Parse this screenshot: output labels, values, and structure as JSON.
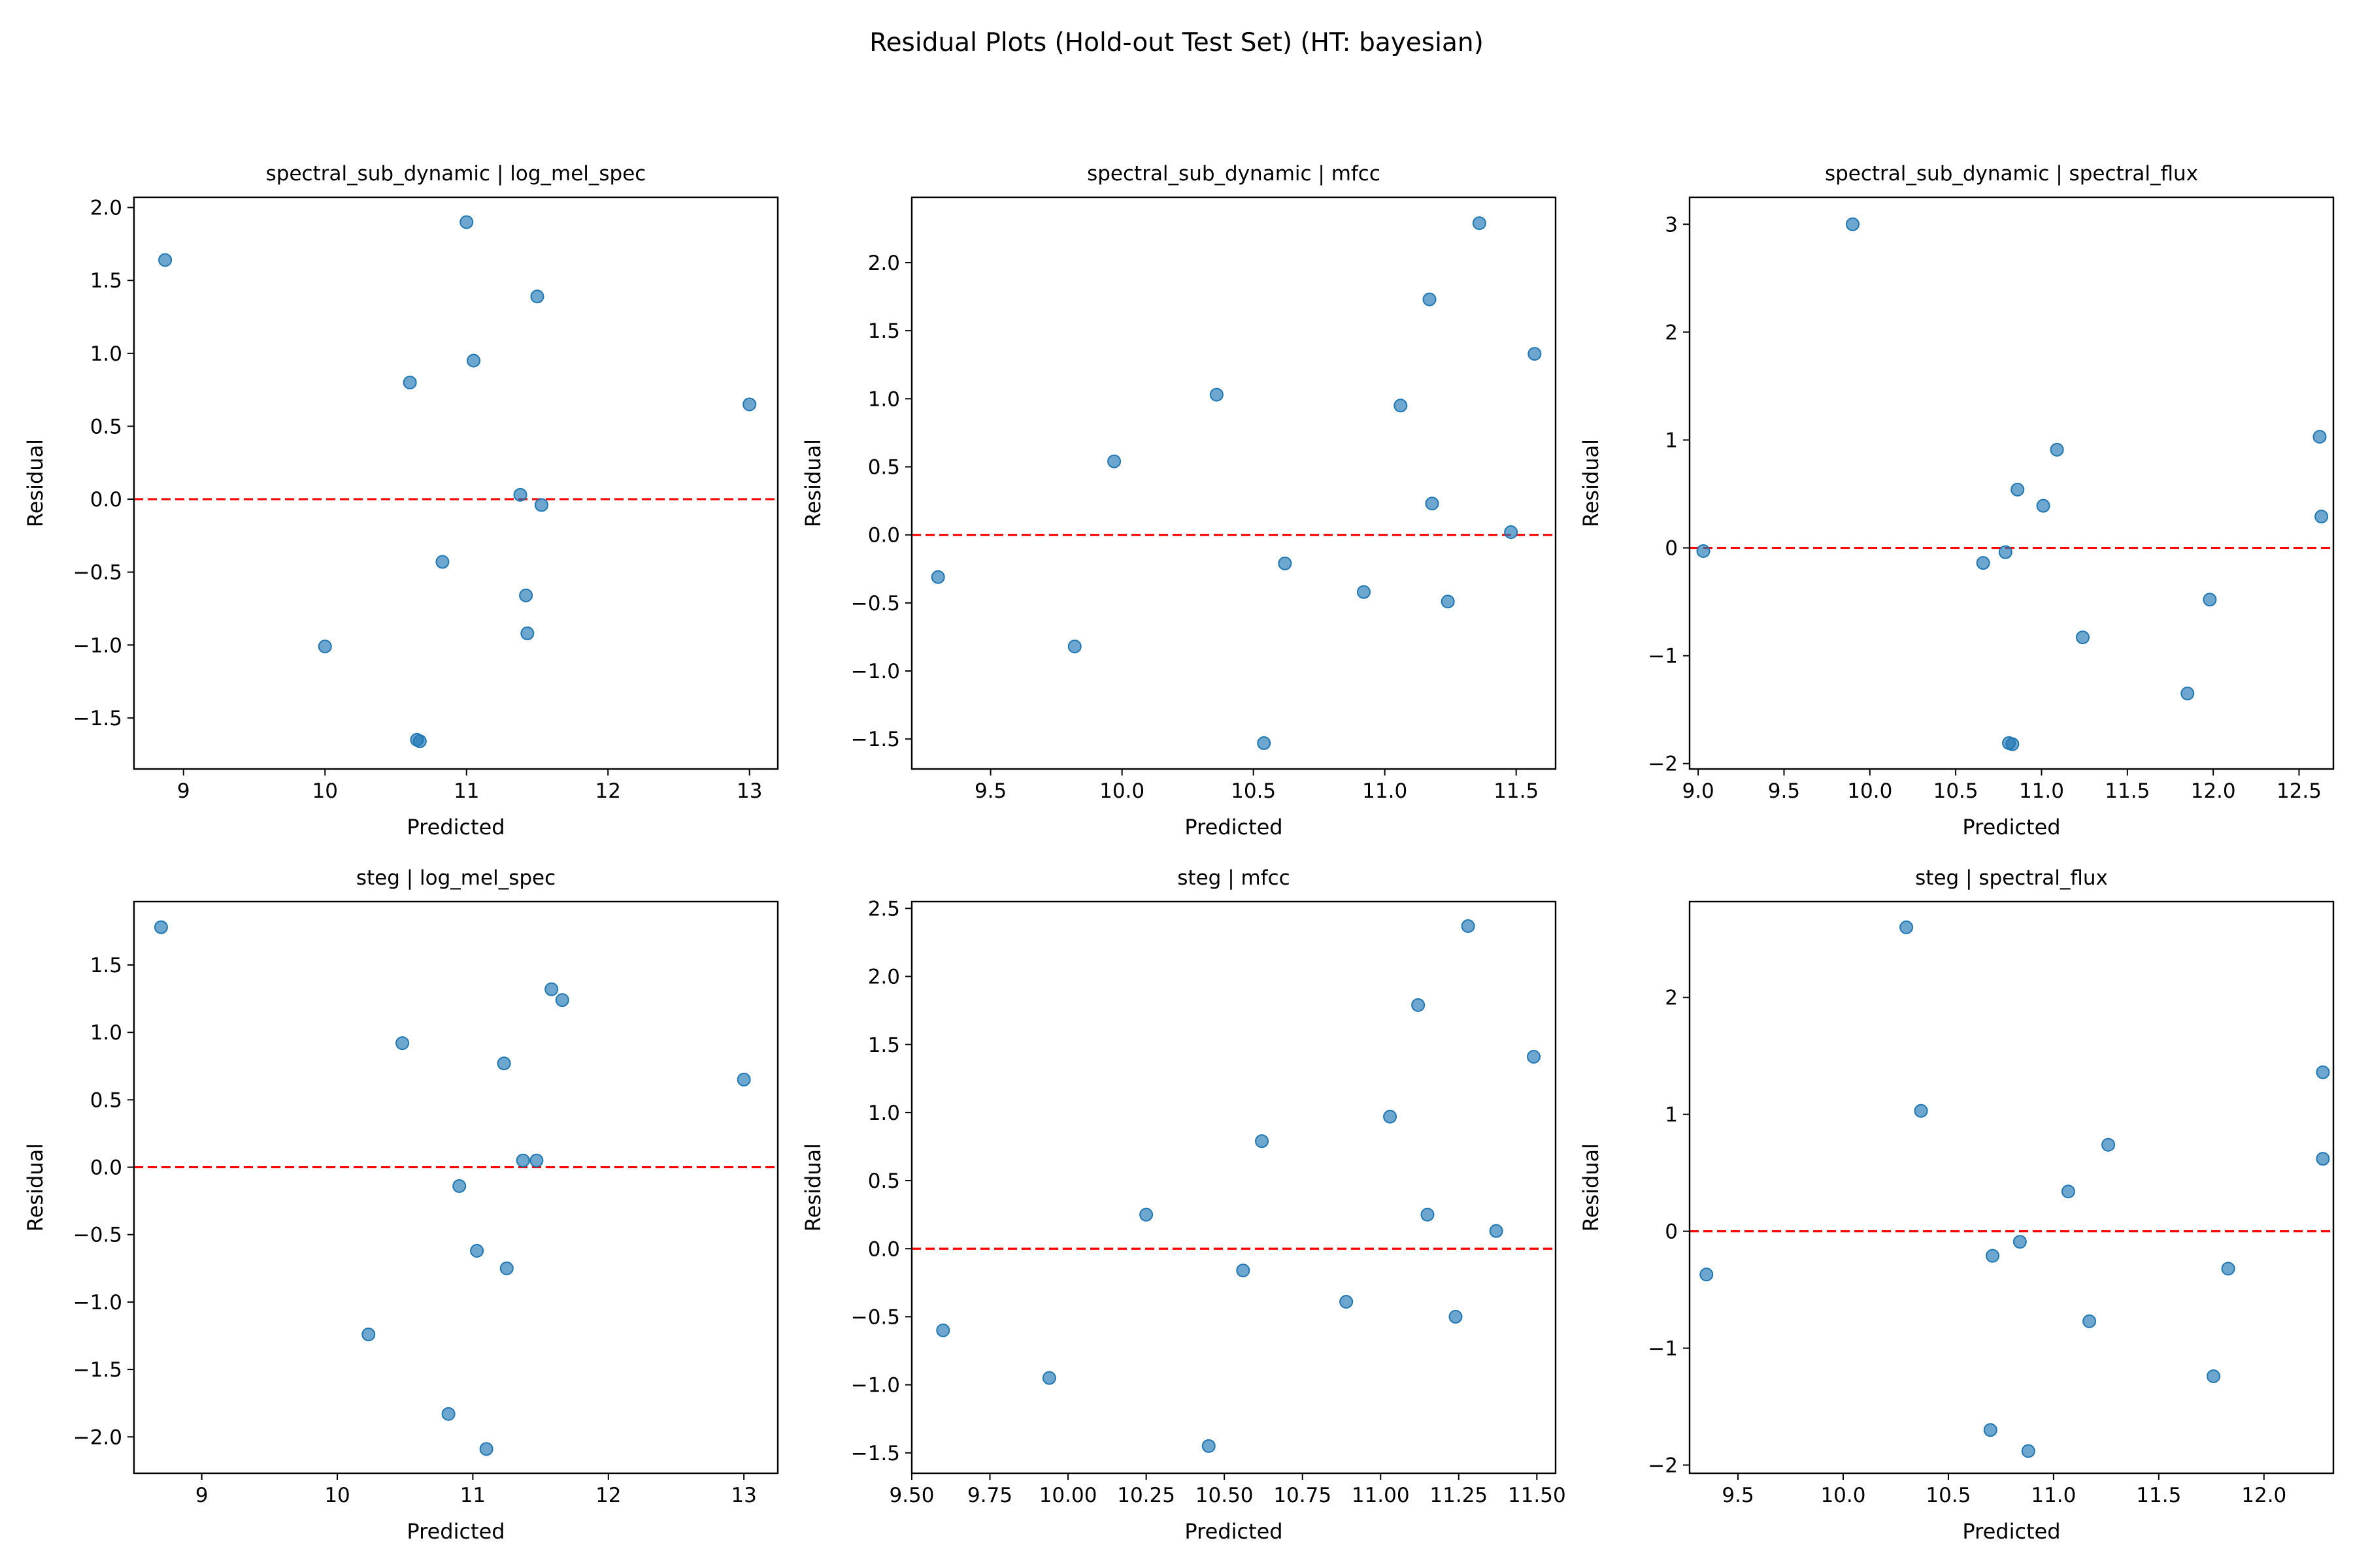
{
  "figure": {
    "title": "Residual Plots (Hold-out Test Set) (HT: bayesian)"
  },
  "colors": {
    "points": "#1f77b4",
    "zero_line": "#ff0000"
  },
  "chart_data": [
    {
      "type": "scatter",
      "title": "spectral_sub_dynamic | log_mel_spec",
      "xlabel": "Predicted",
      "ylabel": "Residual",
      "xlim": [
        8.65,
        13.2
      ],
      "ylim": [
        -1.85,
        2.07
      ],
      "xticks": [
        9,
        10,
        11,
        12,
        13
      ],
      "xtick_labels": [
        "9",
        "10",
        "11",
        "12",
        "13"
      ],
      "yticks": [
        -1.5,
        -1.0,
        -0.5,
        0.0,
        0.5,
        1.0,
        1.5,
        2.0
      ],
      "ytick_labels": [
        "−1.5",
        "−1.0",
        "−0.5",
        "0.0",
        "0.5",
        "1.0",
        "1.5",
        "2.0"
      ],
      "reference_line_y": 0,
      "points": [
        [
          8.87,
          1.64
        ],
        [
          10.0,
          -1.01
        ],
        [
          10.6,
          0.8
        ],
        [
          10.65,
          -1.65
        ],
        [
          10.67,
          -1.66
        ],
        [
          10.83,
          -0.43
        ],
        [
          11.0,
          1.9
        ],
        [
          11.05,
          0.95
        ],
        [
          11.38,
          0.03
        ],
        [
          11.42,
          -0.66
        ],
        [
          11.43,
          -0.92
        ],
        [
          11.5,
          1.39
        ],
        [
          11.53,
          -0.04
        ],
        [
          13.0,
          0.65
        ]
      ]
    },
    {
      "type": "scatter",
      "title": "spectral_sub_dynamic | mfcc",
      "xlabel": "Predicted",
      "ylabel": "Residual",
      "xlim": [
        9.2,
        11.65
      ],
      "ylim": [
        -1.72,
        2.48
      ],
      "xticks": [
        9.5,
        10.0,
        10.5,
        11.0,
        11.5
      ],
      "xtick_labels": [
        "9.5",
        "10.0",
        "10.5",
        "11.0",
        "11.5"
      ],
      "yticks": [
        -1.5,
        -1.0,
        -0.5,
        0.0,
        0.5,
        1.0,
        1.5,
        2.0
      ],
      "ytick_labels": [
        "−1.5",
        "−1.0",
        "−0.5",
        "0.0",
        "0.5",
        "1.0",
        "1.5",
        "2.0"
      ],
      "reference_line_y": 0,
      "points": [
        [
          9.3,
          -0.31
        ],
        [
          9.82,
          -0.82
        ],
        [
          9.97,
          0.54
        ],
        [
          10.36,
          1.03
        ],
        [
          10.54,
          -1.53
        ],
        [
          10.62,
          -0.21
        ],
        [
          10.92,
          -0.42
        ],
        [
          11.06,
          0.95
        ],
        [
          11.17,
          1.73
        ],
        [
          11.18,
          0.23
        ],
        [
          11.24,
          -0.49
        ],
        [
          11.36,
          2.29
        ],
        [
          11.48,
          0.02
        ],
        [
          11.57,
          1.33
        ]
      ]
    },
    {
      "type": "scatter",
      "title": "spectral_sub_dynamic | spectral_flux",
      "xlabel": "Predicted",
      "ylabel": "Residual",
      "xlim": [
        8.95,
        12.7
      ],
      "ylim": [
        -2.05,
        3.25
      ],
      "xticks": [
        9.0,
        9.5,
        10.0,
        10.5,
        11.0,
        11.5,
        12.0,
        12.5
      ],
      "xtick_labels": [
        "9.0",
        "9.5",
        "10.0",
        "10.5",
        "11.0",
        "11.5",
        "12.0",
        "12.5"
      ],
      "yticks": [
        -2,
        -1,
        0,
        1,
        2,
        3
      ],
      "ytick_labels": [
        "−2",
        "−1",
        "0",
        "1",
        "2",
        "3"
      ],
      "reference_line_y": 0,
      "points": [
        [
          9.03,
          -0.03
        ],
        [
          9.9,
          3.0
        ],
        [
          10.66,
          -0.14
        ],
        [
          10.79,
          -0.04
        ],
        [
          10.81,
          -1.81
        ],
        [
          10.83,
          -1.82
        ],
        [
          10.86,
          0.54
        ],
        [
          11.01,
          0.39
        ],
        [
          11.09,
          0.91
        ],
        [
          11.24,
          -0.83
        ],
        [
          11.85,
          -1.35
        ],
        [
          11.98,
          -0.48
        ],
        [
          12.62,
          1.03
        ],
        [
          12.63,
          0.29
        ]
      ]
    },
    {
      "type": "scatter",
      "title": "steg | log_mel_spec",
      "xlabel": "Predicted",
      "ylabel": "Residual",
      "xlim": [
        8.5,
        13.25
      ],
      "ylim": [
        -2.27,
        1.97
      ],
      "xticks": [
        9,
        10,
        11,
        12,
        13
      ],
      "xtick_labels": [
        "9",
        "10",
        "11",
        "12",
        "13"
      ],
      "yticks": [
        -2.0,
        -1.5,
        -1.0,
        -0.5,
        0.0,
        0.5,
        1.0,
        1.5
      ],
      "ytick_labels": [
        "−2.0",
        "−1.5",
        "−1.0",
        "−0.5",
        "0.0",
        "0.5",
        "1.0",
        "1.5"
      ],
      "reference_line_y": 0,
      "points": [
        [
          8.7,
          1.78
        ],
        [
          10.23,
          -1.24
        ],
        [
          10.48,
          0.92
        ],
        [
          10.82,
          -1.83
        ],
        [
          10.9,
          -0.14
        ],
        [
          11.03,
          -0.62
        ],
        [
          11.1,
          -2.09
        ],
        [
          11.23,
          0.77
        ],
        [
          11.25,
          -0.75
        ],
        [
          11.37,
          0.05
        ],
        [
          11.47,
          0.05
        ],
        [
          11.58,
          1.32
        ],
        [
          11.66,
          1.24
        ],
        [
          13.0,
          0.65
        ]
      ]
    },
    {
      "type": "scatter",
      "title": "steg | mfcc",
      "xlabel": "Predicted",
      "ylabel": "Residual",
      "xlim": [
        9.5,
        11.56
      ],
      "ylim": [
        -1.65,
        2.55
      ],
      "xticks": [
        9.5,
        9.75,
        10.0,
        10.25,
        10.5,
        10.75,
        11.0,
        11.25,
        11.5
      ],
      "xtick_labels": [
        "9.50",
        "9.75",
        "10.00",
        "10.25",
        "10.50",
        "10.75",
        "11.00",
        "11.25",
        "11.50"
      ],
      "yticks": [
        -1.5,
        -1.0,
        -0.5,
        0.0,
        0.5,
        1.0,
        1.5,
        2.0,
        2.5
      ],
      "ytick_labels": [
        "−1.5",
        "−1.0",
        "−0.5",
        "0.0",
        "0.5",
        "1.0",
        "1.5",
        "2.0",
        "2.5"
      ],
      "reference_line_y": 0,
      "points": [
        [
          9.6,
          -0.6
        ],
        [
          9.94,
          -0.95
        ],
        [
          10.25,
          0.25
        ],
        [
          10.45,
          -1.45
        ],
        [
          10.56,
          -0.16
        ],
        [
          10.62,
          0.79
        ],
        [
          10.89,
          -0.39
        ],
        [
          11.03,
          0.97
        ],
        [
          11.12,
          1.79
        ],
        [
          11.15,
          0.25
        ],
        [
          11.24,
          -0.5
        ],
        [
          11.28,
          2.37
        ],
        [
          11.37,
          0.13
        ],
        [
          11.49,
          1.41
        ]
      ]
    },
    {
      "type": "scatter",
      "title": "steg | spectral_flux",
      "xlabel": "Predicted",
      "ylabel": "Residual",
      "xlim": [
        9.27,
        12.33
      ],
      "ylim": [
        -2.07,
        2.82
      ],
      "xticks": [
        9.5,
        10.0,
        10.5,
        11.0,
        11.5,
        12.0
      ],
      "xtick_labels": [
        "9.5",
        "10.0",
        "10.5",
        "11.0",
        "11.5",
        "12.0"
      ],
      "yticks": [
        -2,
        -1,
        0,
        1,
        2
      ],
      "ytick_labels": [
        "−2",
        "−1",
        "0",
        "1",
        "2"
      ],
      "reference_line_y": 0,
      "points": [
        [
          9.35,
          -0.37
        ],
        [
          10.3,
          2.6
        ],
        [
          10.37,
          1.03
        ],
        [
          10.7,
          -1.7
        ],
        [
          10.71,
          -0.21
        ],
        [
          10.84,
          -0.09
        ],
        [
          10.88,
          -1.88
        ],
        [
          11.07,
          0.34
        ],
        [
          11.17,
          -0.77
        ],
        [
          11.26,
          0.74
        ],
        [
          11.76,
          -1.24
        ],
        [
          11.83,
          -0.32
        ],
        [
          12.28,
          1.36
        ],
        [
          12.28,
          0.62
        ]
      ]
    }
  ]
}
